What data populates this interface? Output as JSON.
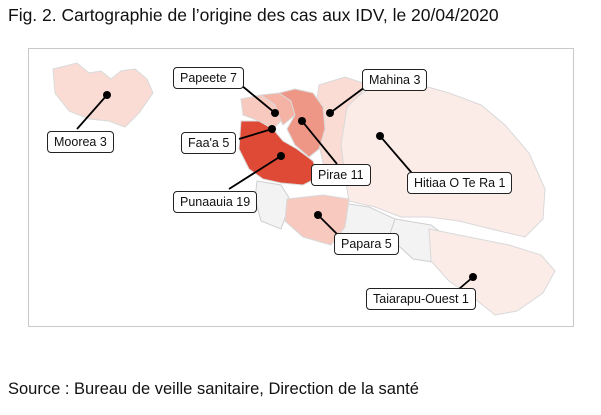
{
  "title": "Fig. 2. Cartographie de l’origine des cas aux IDV, le 20/04/2020",
  "source": "Source : Bureau de veille sanitaire, Direction de la santé",
  "colors": {
    "count_19": "#de4a36",
    "count_11": "#ee9787",
    "count_7": "#f4b3a5",
    "count_5": "#f7c9bf",
    "count_3": "#fadcd5",
    "count_1": "#fcece8",
    "count_0": "#f3f3f3",
    "border": "#c9c9c9",
    "marker": "#000000"
  },
  "communes": [
    {
      "id": "moorea",
      "label": "Moorea 3",
      "count": 3
    },
    {
      "id": "papeete",
      "label": "Papeete 7",
      "count": 7
    },
    {
      "id": "faaa",
      "label": "Faa'a 5",
      "count": 5
    },
    {
      "id": "punaauia",
      "label": "Punaauia 19",
      "count": 19
    },
    {
      "id": "pirae",
      "label": "Pirae 11",
      "count": 11
    },
    {
      "id": "mahina",
      "label": "Mahina 3",
      "count": 3
    },
    {
      "id": "hitiaa",
      "label": "Hitiaa O Te Ra 1",
      "count": 1
    },
    {
      "id": "papara",
      "label": "Papara 5",
      "count": 5
    },
    {
      "id": "taiarapu_ouest",
      "label": "Taiarapu-Ouest 1",
      "count": 1
    }
  ]
}
